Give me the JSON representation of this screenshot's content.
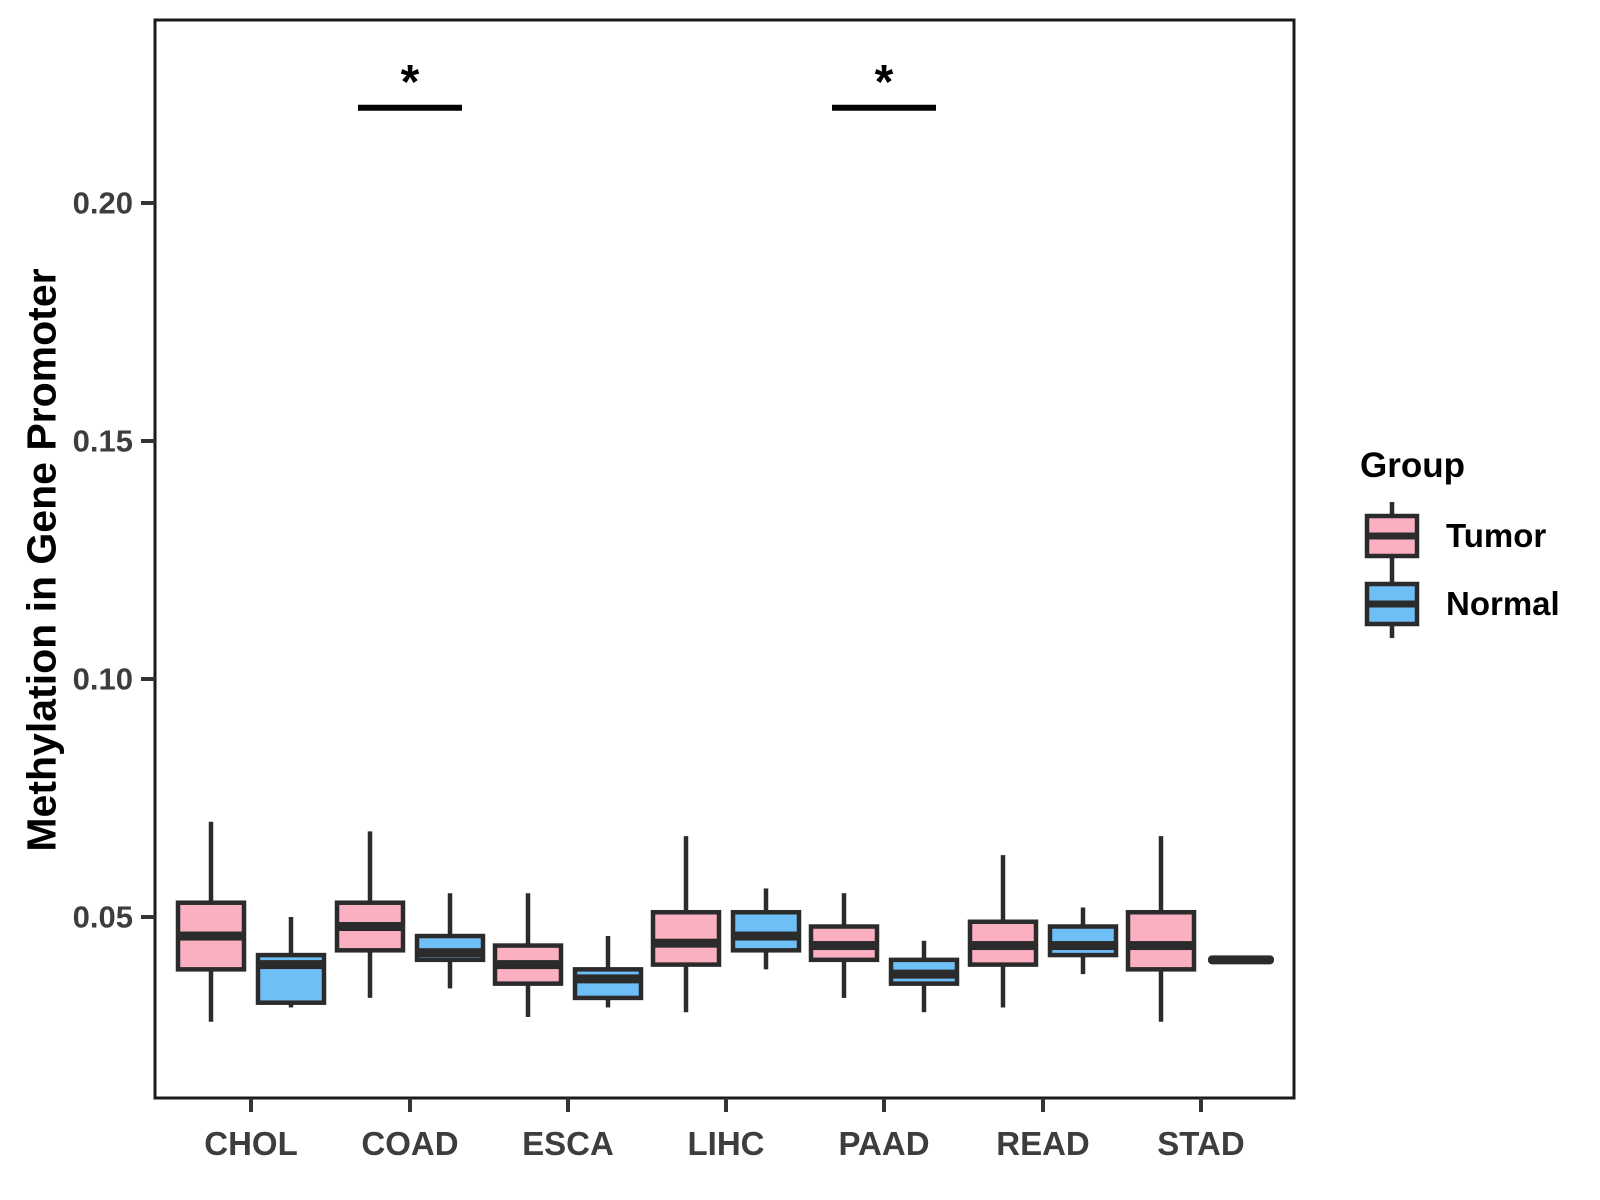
{
  "chart_data": {
    "type": "boxplot",
    "title": "",
    "xlabel": "",
    "ylabel": "Methylation in Gene Promoter",
    "categories": [
      "CHOL",
      "COAD",
      "ESCA",
      "LIHC",
      "PAAD",
      "READ",
      "STAD"
    ],
    "groups": [
      "Tumor",
      "Normal"
    ],
    "y_ticks": [
      {
        "value": 0.05,
        "label": "0.05"
      },
      {
        "value": 0.1,
        "label": "0.10"
      },
      {
        "value": 0.15,
        "label": "0.15"
      },
      {
        "value": 0.2,
        "label": "0.20"
      }
    ],
    "ylim": [
      0.012,
      0.238
    ],
    "grid": "off",
    "colors": {
      "tumor_fill": "#FBB0C2",
      "normal_fill": "#6FBFF7",
      "box_stroke": "#2B2B2B",
      "axis_text": "#3D3D3D",
      "panel_border": "#1A1A1A",
      "significance": "#000000"
    },
    "series": [
      {
        "name": "Tumor",
        "boxes": [
          {
            "category": "CHOL",
            "low": 0.028,
            "q1": 0.039,
            "median": 0.046,
            "q3": 0.053,
            "high": 0.07
          },
          {
            "category": "COAD",
            "low": 0.033,
            "q1": 0.043,
            "median": 0.048,
            "q3": 0.053,
            "high": 0.068
          },
          {
            "category": "ESCA",
            "low": 0.029,
            "q1": 0.036,
            "median": 0.04,
            "q3": 0.044,
            "high": 0.055
          },
          {
            "category": "LIHC",
            "low": 0.03,
            "q1": 0.04,
            "median": 0.0445,
            "q3": 0.051,
            "high": 0.067
          },
          {
            "category": "PAAD",
            "low": 0.033,
            "q1": 0.041,
            "median": 0.044,
            "q3": 0.048,
            "high": 0.055
          },
          {
            "category": "READ",
            "low": 0.031,
            "q1": 0.04,
            "median": 0.044,
            "q3": 0.049,
            "high": 0.063
          },
          {
            "category": "STAD",
            "low": 0.028,
            "q1": 0.039,
            "median": 0.044,
            "q3": 0.051,
            "high": 0.067
          }
        ]
      },
      {
        "name": "Normal",
        "boxes": [
          {
            "category": "CHOL",
            "low": 0.031,
            "q1": 0.032,
            "median": 0.04,
            "q3": 0.042,
            "high": 0.05
          },
          {
            "category": "COAD",
            "low": 0.035,
            "q1": 0.041,
            "median": 0.0425,
            "q3": 0.046,
            "high": 0.055
          },
          {
            "category": "ESCA",
            "low": 0.031,
            "q1": 0.033,
            "median": 0.037,
            "q3": 0.039,
            "high": 0.046
          },
          {
            "category": "LIHC",
            "low": 0.039,
            "q1": 0.043,
            "median": 0.046,
            "q3": 0.051,
            "high": 0.056
          },
          {
            "category": "PAAD",
            "low": 0.03,
            "q1": 0.036,
            "median": 0.038,
            "q3": 0.041,
            "high": 0.045
          },
          {
            "category": "READ",
            "low": 0.038,
            "q1": 0.042,
            "median": 0.044,
            "q3": 0.048,
            "high": 0.052
          },
          {
            "category": "STAD",
            "low": 0.041,
            "q1": 0.041,
            "median": 0.041,
            "q3": 0.041,
            "high": 0.041
          }
        ]
      }
    ],
    "significance": [
      {
        "category": "COAD",
        "symbol": "*",
        "bar_value": 0.22
      },
      {
        "category": "PAAD",
        "symbol": "*",
        "bar_value": 0.22
      }
    ],
    "legend": {
      "title": "Group",
      "position": "right",
      "items": [
        {
          "label": "Tumor",
          "color": "#FBB0C2"
        },
        {
          "label": "Normal",
          "color": "#6FBFF7"
        }
      ]
    }
  }
}
